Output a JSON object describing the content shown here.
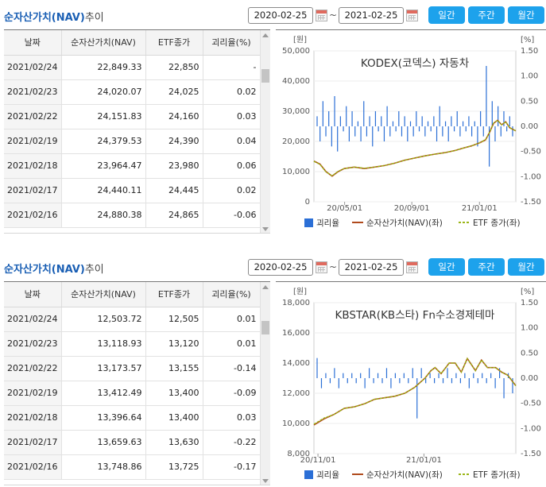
{
  "panels": [
    {
      "title_main": "순자산가치(NAV)",
      "title_suffix": "추이",
      "date_from": "2020-02-25",
      "date_to": "2021-02-25",
      "date_separator": "~",
      "period_buttons": [
        "일간",
        "주간",
        "월간"
      ],
      "table": {
        "headers": [
          "날짜",
          "순자산가치(NAV)",
          "ETF종가",
          "괴리율(%)"
        ],
        "rows": [
          [
            "2021/02/24",
            "22,849.33",
            "22,850",
            "-"
          ],
          [
            "2021/02/23",
            "24,020.07",
            "24,025",
            "0.02"
          ],
          [
            "2021/02/22",
            "24,151.83",
            "24,160",
            "0.03"
          ],
          [
            "2021/02/19",
            "24,379.53",
            "24,390",
            "0.04"
          ],
          [
            "2021/02/18",
            "23,964.47",
            "23,980",
            "0.06"
          ],
          [
            "2021/02/17",
            "24,440.11",
            "24,445",
            "0.02"
          ],
          [
            "2021/02/16",
            "24,880.38",
            "24,865",
            "-0.06"
          ]
        ]
      },
      "chart_data": {
        "type": "line",
        "title": "KODEX(코덱스) 자동차",
        "left_unit": "[원]",
        "right_unit": "[%]",
        "ylim_left": [
          0,
          50000
        ],
        "ylim_right": [
          -1.5,
          1.5
        ],
        "left_ticks": [
          "50,000",
          "40,000",
          "30,000",
          "20,000",
          "10,000",
          "0"
        ],
        "right_ticks": [
          "1.50",
          "1.00",
          "0.50",
          "0.00",
          "-0.50",
          "-1.00",
          "-1.50"
        ],
        "x_ticks": [
          {
            "label": "20/05/01",
            "pos": 0.152
          },
          {
            "label": "20/09/01",
            "pos": 0.485
          },
          {
            "label": "21/01/01",
            "pos": 0.82
          }
        ],
        "series": [
          {
            "name": "순자산가치(NAV)(좌)",
            "color": "#b04a1c",
            "x": [
              0,
              0.03,
              0.06,
              0.09,
              0.12,
              0.15,
              0.2,
              0.25,
              0.3,
              0.35,
              0.4,
              0.45,
              0.5,
              0.55,
              0.6,
              0.65,
              0.7,
              0.74,
              0.78,
              0.82,
              0.85,
              0.87,
              0.89,
              0.91,
              0.93,
              0.95,
              0.97,
              1.0
            ],
            "values": [
              13500,
              12500,
              10000,
              8500,
              10000,
              11000,
              11500,
              11000,
              11500,
              12000,
              12800,
              13800,
              14500,
              15200,
              15800,
              16300,
              17000,
              17800,
              18500,
              19500,
              20500,
              23000,
              26000,
              27000,
              25500,
              26500,
              24500,
              23500
            ]
          },
          {
            "name": "ETF 종가(좌)",
            "color": "#9ab516",
            "x": [
              0,
              0.03,
              0.06,
              0.09,
              0.12,
              0.15,
              0.2,
              0.25,
              0.3,
              0.35,
              0.4,
              0.45,
              0.5,
              0.55,
              0.6,
              0.65,
              0.7,
              0.74,
              0.78,
              0.82,
              0.85,
              0.87,
              0.89,
              0.91,
              0.93,
              0.95,
              0.97,
              1.0
            ],
            "values": [
              13400,
              12400,
              9900,
              8600,
              10100,
              11000,
              11500,
              11100,
              11500,
              12000,
              12800,
              13800,
              14500,
              15200,
              15800,
              16300,
              17000,
              17800,
              18500,
              19500,
              20600,
              23000,
              26100,
              27000,
              25500,
              26500,
              24500,
              23500
            ]
          },
          {
            "name": "괴리율",
            "color": "#2b6fd6",
            "type": "bar",
            "values": [
              0.2,
              -0.3,
              0.5,
              -0.2,
              0.3,
              -0.4,
              0.6,
              -0.5,
              0.2,
              -0.1,
              0.4,
              -0.3,
              0.3,
              -0.2,
              0.1,
              -0.3,
              0.5,
              -0.2,
              0.2,
              -0.4,
              0.3,
              -0.1,
              0.2,
              -0.3,
              0.4,
              -0.2,
              0.1,
              -0.1,
              0.3,
              -0.2,
              0.2,
              -0.3,
              0.1,
              -0.2,
              0.3,
              -0.1,
              0.2,
              -0.2,
              0.1,
              -0.1,
              0.2,
              -0.3,
              0.4,
              -0.2,
              0.1,
              -0.3,
              0.2,
              -0.1,
              0.3,
              -0.2,
              0.1,
              -0.1,
              0.2,
              -0.2,
              0.1,
              -0.4,
              0.3,
              -0.2,
              1.2,
              -0.8,
              0.5,
              -0.3,
              0.4,
              -0.2,
              0.3,
              -0.1,
              0.2,
              -0.2
            ]
          }
        ],
        "legend": [
          "괴리율",
          "순자산가치(NAV)(좌)",
          "ETF 종가(좌)"
        ]
      }
    },
    {
      "title_main": "순자산가치(NAV)",
      "title_suffix": "추이",
      "date_from": "2020-02-25",
      "date_to": "2021-02-25",
      "date_separator": "~",
      "period_buttons": [
        "일간",
        "주간",
        "월간"
      ],
      "table": {
        "headers": [
          "날짜",
          "순자산가치(NAV)",
          "ETF종가",
          "괴리율(%)"
        ],
        "rows": [
          [
            "2021/02/24",
            "12,503.72",
            "12,505",
            "0.01"
          ],
          [
            "2021/02/23",
            "13,118.93",
            "13,120",
            "0.01"
          ],
          [
            "2021/02/22",
            "13,173.57",
            "13,155",
            "-0.14"
          ],
          [
            "2021/02/19",
            "13,412.49",
            "13,400",
            "-0.09"
          ],
          [
            "2021/02/18",
            "13,396.64",
            "13,400",
            "0.03"
          ],
          [
            "2021/02/17",
            "13,659.63",
            "13,630",
            "-0.22"
          ],
          [
            "2021/02/16",
            "13,748.86",
            "13,725",
            "-0.17"
          ]
        ]
      },
      "chart_data": {
        "type": "line",
        "title": "KBSTAR(KB스타) Fn수소경제테마",
        "left_unit": "[원]",
        "right_unit": "[%]",
        "ylim_left": [
          8000,
          18000
        ],
        "ylim_right": [
          -1.5,
          1.5
        ],
        "left_ticks": [
          "18,000",
          "16,000",
          "14,000",
          "12,000",
          "10,000",
          "8,000"
        ],
        "right_ticks": [
          "1.50",
          "1.00",
          "0.50",
          "0.00",
          "-0.50",
          "-1.00",
          "-1.50"
        ],
        "x_ticks": [
          {
            "label": "20/11/01",
            "pos": 0.02
          },
          {
            "label": "21/01/01",
            "pos": 0.545
          }
        ],
        "series": [
          {
            "name": "순자산가치(NAV)(좌)",
            "color": "#b04a1c",
            "x": [
              0,
              0.05,
              0.1,
              0.15,
              0.2,
              0.25,
              0.3,
              0.35,
              0.4,
              0.45,
              0.5,
              0.55,
              0.58,
              0.6,
              0.63,
              0.67,
              0.7,
              0.73,
              0.76,
              0.8,
              0.83,
              0.86,
              0.9,
              0.93,
              0.96,
              1.0
            ],
            "values": [
              9900,
              10300,
              10600,
              11000,
              11100,
              11300,
              11600,
              11700,
              11800,
              12000,
              12400,
              13000,
              13500,
              13700,
              13300,
              14000,
              14000,
              13400,
              14300,
              13500,
              14200,
              13700,
              13700,
              13400,
              13200,
              12500
            ]
          },
          {
            "name": "ETF 종가(좌)",
            "color": "#9ab516",
            "x": [
              0,
              0.05,
              0.1,
              0.15,
              0.2,
              0.25,
              0.3,
              0.35,
              0.4,
              0.45,
              0.5,
              0.55,
              0.58,
              0.6,
              0.63,
              0.67,
              0.7,
              0.73,
              0.76,
              0.8,
              0.83,
              0.86,
              0.9,
              0.93,
              0.96,
              1.0
            ],
            "values": [
              9950,
              10350,
              10600,
              11000,
              11100,
              11300,
              11600,
              11700,
              11800,
              12000,
              12400,
              13000,
              13500,
              13700,
              13300,
              14000,
              14000,
              13400,
              14300,
              13500,
              14200,
              13700,
              13700,
              13400,
              13200,
              12500
            ]
          },
          {
            "name": "괴리율",
            "color": "#2b6fd6",
            "type": "bar",
            "values": [
              0.4,
              -0.2,
              0.1,
              -0.1,
              0.2,
              -0.2,
              0.1,
              -0.1,
              0.1,
              -0.1,
              0.1,
              -0.2,
              0.2,
              -0.1,
              0.1,
              -0.1,
              0.2,
              -0.2,
              0.1,
              -0.1,
              0.1,
              -0.1,
              0.2,
              -0.8,
              0.2,
              -0.1,
              0.1,
              -0.1,
              0.1,
              -0.1,
              0.2,
              -0.1,
              0.1,
              -0.1,
              0.1,
              -0.2,
              0.1,
              -0.1,
              0.1,
              -0.1,
              0.1,
              -0.2,
              0.2,
              -0.4,
              0.1,
              -0.3
            ]
          }
        ],
        "legend": [
          "괴리율",
          "순자산가치(NAV)(좌)",
          "ETF 종가(좌)"
        ]
      }
    }
  ]
}
